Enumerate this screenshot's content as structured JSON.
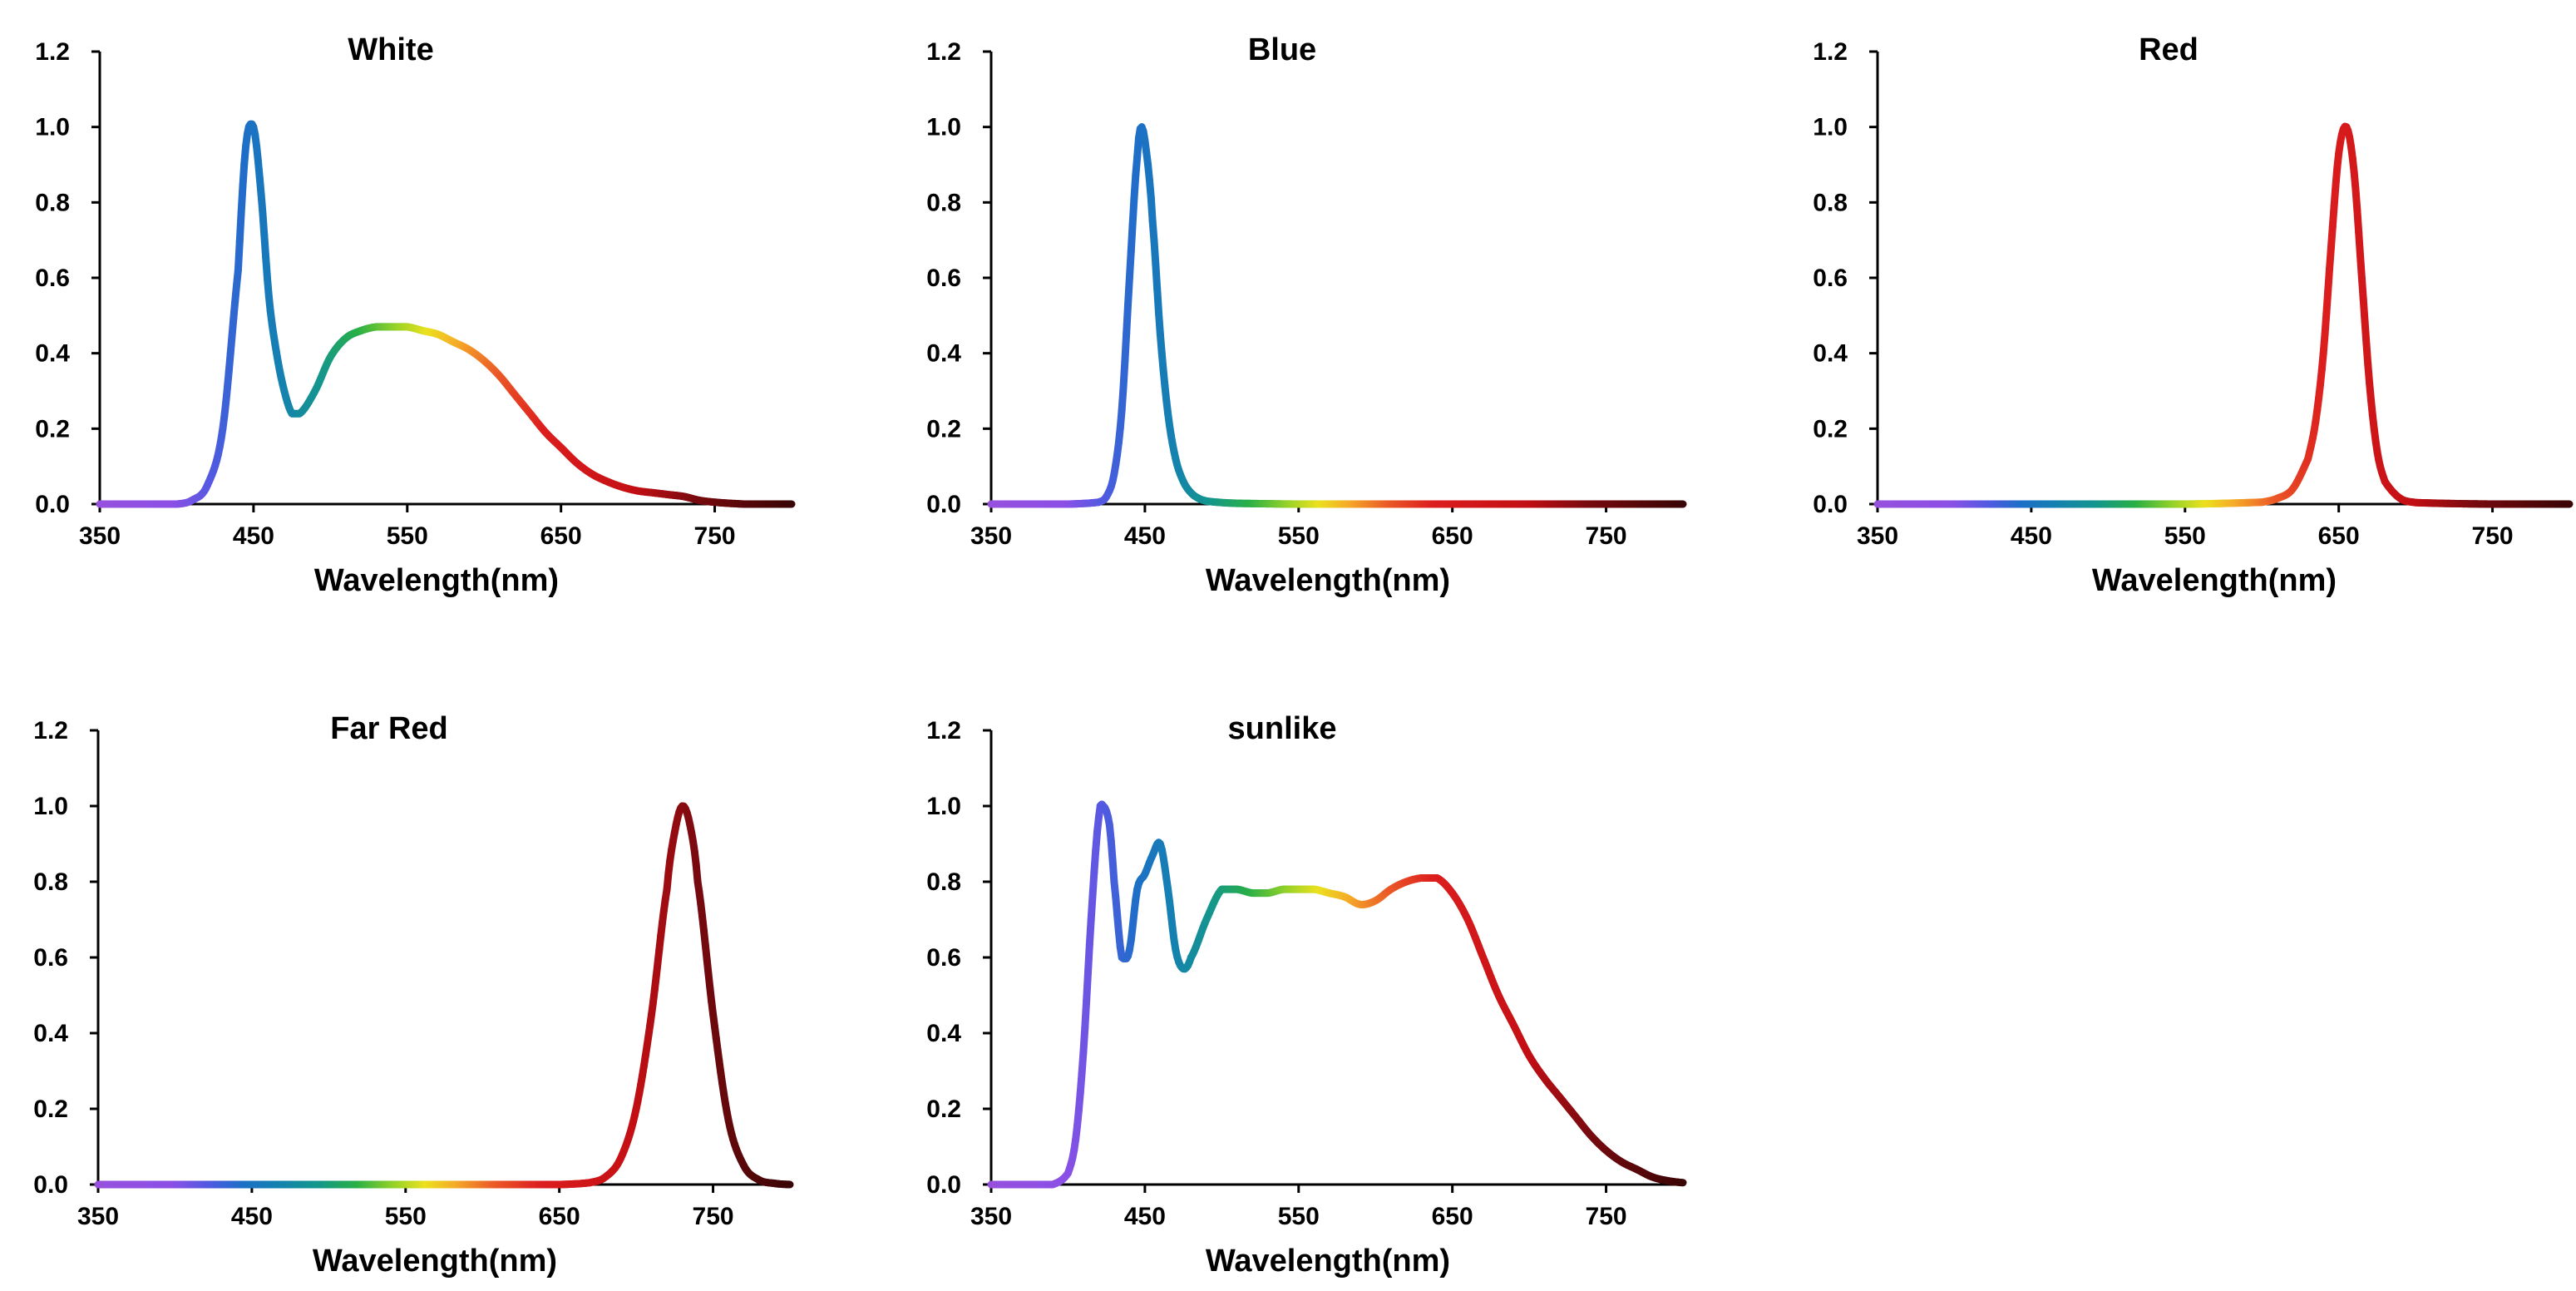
{
  "figure": {
    "x_axis_label": "Wavelength(nm)",
    "line_color_scale": "wavelength-colored (visible spectrum)"
  },
  "chart_data": [
    {
      "type": "line",
      "title": "White",
      "xlabel": "Wavelength(nm)",
      "ylabel": "",
      "xlim": [
        350,
        800
      ],
      "ylim": [
        0,
        1.2
      ],
      "x_ticks": [
        "350",
        "450",
        "550",
        "650",
        "750"
      ],
      "y_ticks": [
        "0.0",
        "0.2",
        "0.4",
        "0.6",
        "0.8",
        "1.0",
        "1.2"
      ],
      "grid": false,
      "x": [
        350,
        380,
        400,
        410,
        420,
        430,
        440,
        445,
        450,
        455,
        460,
        465,
        470,
        475,
        480,
        490,
        500,
        510,
        520,
        530,
        540,
        550,
        560,
        570,
        580,
        590,
        600,
        610,
        620,
        630,
        640,
        650,
        660,
        670,
        680,
        690,
        700,
        710,
        720,
        730,
        740,
        750,
        760,
        770,
        780,
        790,
        800
      ],
      "y": [
        0.0,
        0.0,
        0.0,
        0.01,
        0.05,
        0.2,
        0.62,
        0.95,
        1.0,
        0.82,
        0.55,
        0.4,
        0.3,
        0.24,
        0.24,
        0.3,
        0.39,
        0.44,
        0.46,
        0.47,
        0.47,
        0.47,
        0.46,
        0.45,
        0.43,
        0.41,
        0.38,
        0.34,
        0.29,
        0.24,
        0.19,
        0.15,
        0.11,
        0.08,
        0.06,
        0.045,
        0.035,
        0.03,
        0.025,
        0.02,
        0.01,
        0.005,
        0.002,
        0.0,
        0.0,
        0.0,
        0.0
      ]
    },
    {
      "type": "line",
      "title": "Blue",
      "xlabel": "Wavelength(nm)",
      "ylabel": "",
      "xlim": [
        350,
        800
      ],
      "ylim": [
        0,
        1.2
      ],
      "x_ticks": [
        "350",
        "450",
        "550",
        "650",
        "750"
      ],
      "y_ticks": [
        "0.0",
        "0.2",
        "0.4",
        "0.6",
        "0.8",
        "1.0",
        "1.2"
      ],
      "grid": false,
      "x": [
        350,
        400,
        420,
        425,
        430,
        435,
        440,
        445,
        448,
        452,
        455,
        460,
        465,
        470,
        475,
        480,
        485,
        490,
        500,
        510,
        550,
        650,
        750,
        800
      ],
      "y": [
        0.0,
        0.0,
        0.005,
        0.02,
        0.08,
        0.25,
        0.6,
        0.92,
        1.0,
        0.9,
        0.75,
        0.45,
        0.24,
        0.12,
        0.06,
        0.03,
        0.015,
        0.008,
        0.004,
        0.002,
        0.0,
        0.0,
        0.0,
        0.0
      ]
    },
    {
      "type": "line",
      "title": "Red",
      "xlabel": "Wavelength(nm)",
      "ylabel": "",
      "xlim": [
        350,
        800
      ],
      "ylim": [
        0,
        1.2
      ],
      "x_ticks": [
        "350",
        "450",
        "550",
        "650",
        "750"
      ],
      "y_ticks": [
        "0.0",
        "0.2",
        "0.4",
        "0.6",
        "0.8",
        "1.0",
        "1.2"
      ],
      "grid": false,
      "x": [
        350,
        450,
        550,
        600,
        610,
        620,
        630,
        635,
        640,
        645,
        650,
        655,
        660,
        665,
        670,
        675,
        680,
        690,
        700,
        750,
        800
      ],
      "y": [
        0.0,
        0.0,
        0.0,
        0.005,
        0.015,
        0.04,
        0.12,
        0.22,
        0.4,
        0.68,
        0.93,
        1.0,
        0.88,
        0.6,
        0.32,
        0.14,
        0.06,
        0.015,
        0.004,
        0.0,
        0.0
      ]
    },
    {
      "type": "line",
      "title": "Far Red",
      "xlabel": "Wavelength(nm)",
      "ylabel": "",
      "xlim": [
        350,
        800
      ],
      "ylim": [
        0,
        1.2
      ],
      "x_ticks": [
        "350",
        "450",
        "550",
        "650",
        "750"
      ],
      "y_ticks": [
        "0.0",
        "0.2",
        "0.4",
        "0.6",
        "0.8",
        "1.0",
        "1.2"
      ],
      "grid": false,
      "x": [
        350,
        450,
        550,
        650,
        670,
        680,
        690,
        700,
        710,
        720,
        725,
        730,
        735,
        740,
        750,
        760,
        770,
        780,
        790,
        800
      ],
      "y": [
        0.0,
        0.0,
        0.0,
        0.0,
        0.005,
        0.02,
        0.07,
        0.2,
        0.45,
        0.78,
        0.93,
        1.0,
        0.95,
        0.8,
        0.45,
        0.17,
        0.05,
        0.012,
        0.003,
        0.0
      ]
    },
    {
      "type": "line",
      "title": "sunlike",
      "xlabel": "Wavelength(nm)",
      "ylabel": "",
      "xlim": [
        350,
        800
      ],
      "ylim": [
        0,
        1.2
      ],
      "x_ticks": [
        "350",
        "450",
        "550",
        "650",
        "750"
      ],
      "y_ticks": [
        "0.0",
        "0.2",
        "0.4",
        "0.6",
        "0.8",
        "1.0",
        "1.2"
      ],
      "grid": false,
      "x": [
        350,
        390,
        400,
        405,
        410,
        415,
        420,
        423,
        427,
        430,
        435,
        440,
        445,
        450,
        455,
        460,
        465,
        470,
        475,
        480,
        490,
        500,
        510,
        520,
        530,
        540,
        550,
        560,
        570,
        580,
        590,
        600,
        610,
        620,
        630,
        640,
        650,
        660,
        670,
        680,
        690,
        700,
        710,
        720,
        730,
        740,
        750,
        760,
        770,
        780,
        790,
        800
      ],
      "y": [
        0.0,
        0.0,
        0.03,
        0.12,
        0.35,
        0.7,
        0.97,
        1.0,
        0.95,
        0.8,
        0.6,
        0.62,
        0.78,
        0.82,
        0.87,
        0.9,
        0.78,
        0.62,
        0.57,
        0.6,
        0.7,
        0.78,
        0.78,
        0.77,
        0.77,
        0.78,
        0.78,
        0.78,
        0.77,
        0.76,
        0.74,
        0.75,
        0.78,
        0.8,
        0.81,
        0.81,
        0.77,
        0.7,
        0.6,
        0.5,
        0.42,
        0.34,
        0.28,
        0.23,
        0.18,
        0.13,
        0.09,
        0.06,
        0.04,
        0.02,
        0.01,
        0.005
      ]
    }
  ]
}
